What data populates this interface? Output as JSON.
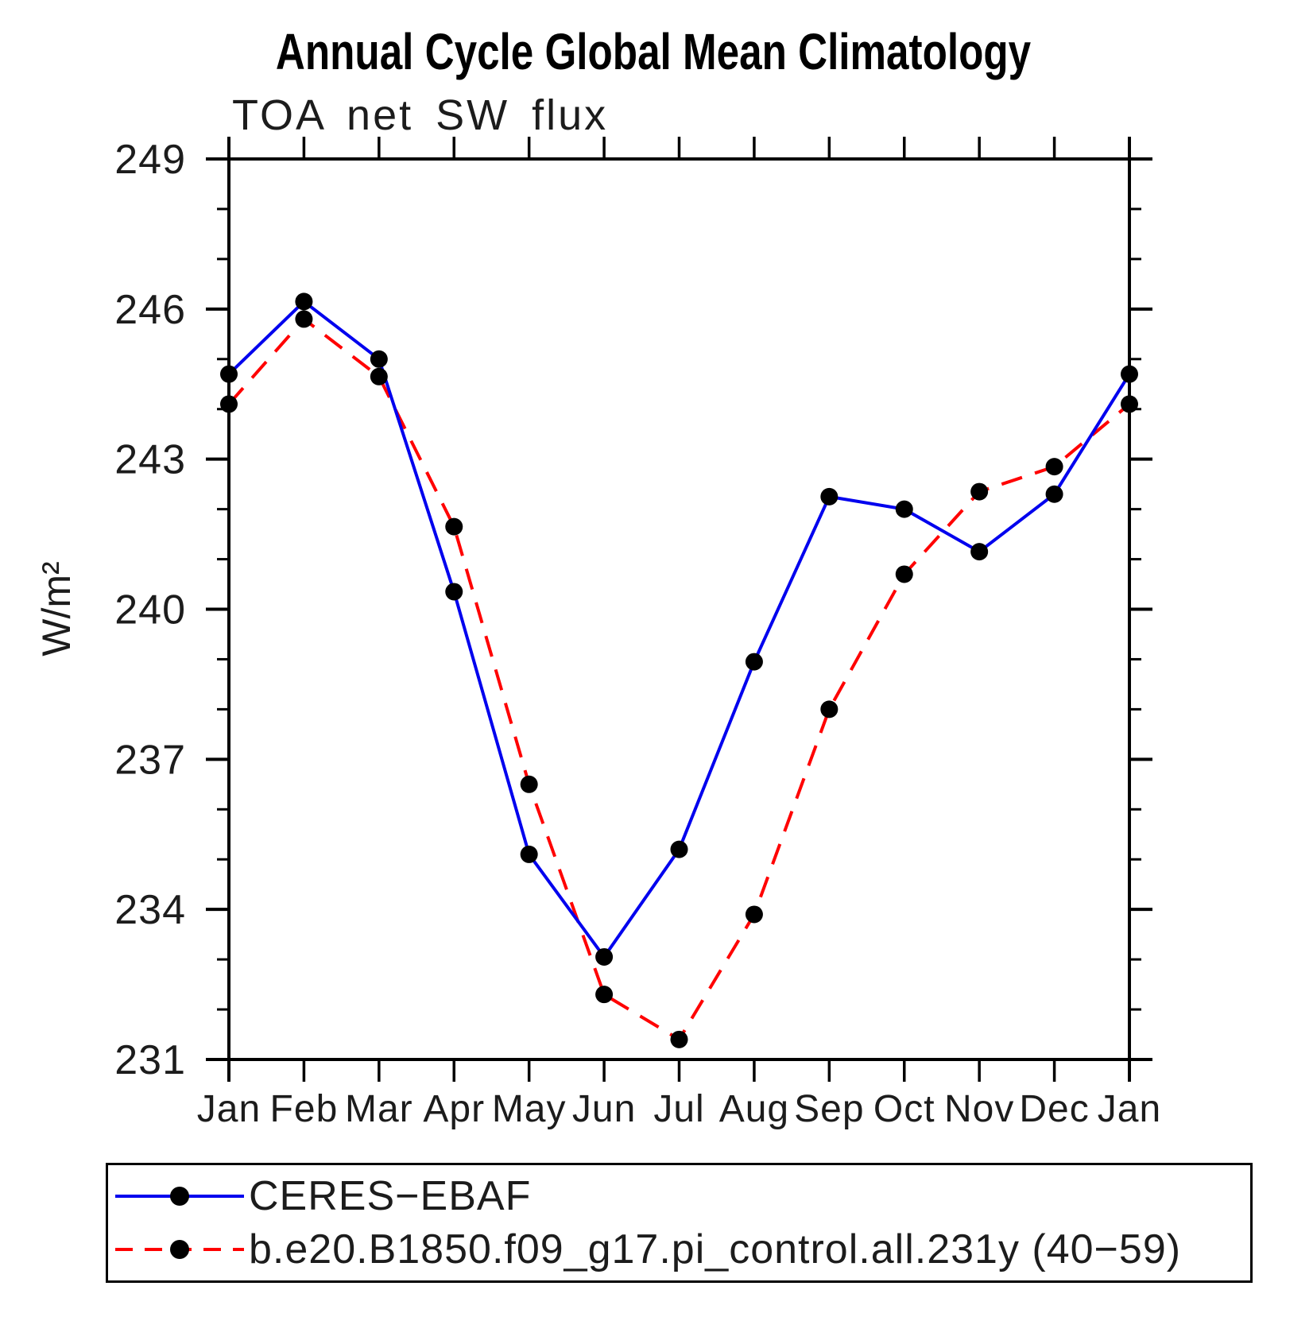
{
  "title": "Annual Cycle Global Mean Climatology",
  "subtitle": "TOA net SW flux",
  "legend": {
    "position": "bottom",
    "entries": [
      {
        "label": "CERES−EBAF",
        "color": "#0000ee",
        "line_style": "solid",
        "marker": "filled-circle",
        "marker_color": "#000000"
      },
      {
        "label": "b.e20.B1850.f09_g17.pi_control.all.231y (40−59)",
        "color": "#ff0000",
        "line_style": "dashed",
        "marker": "filled-circle",
        "marker_color": "#000000"
      }
    ]
  },
  "chart_data": {
    "type": "line",
    "title": "Annual Cycle Global Mean Climatology",
    "subtitle": "TOA net SW flux",
    "xlabel": "",
    "ylabel": "W/m²",
    "x_labels": [
      "Jan",
      "Feb",
      "Mar",
      "Apr",
      "May",
      "Jun",
      "Jul",
      "Aug",
      "Sep",
      "Oct",
      "Nov",
      "Dec",
      "Jan"
    ],
    "ylim": [
      231,
      249
    ],
    "yticks_major": [
      231,
      234,
      237,
      240,
      243,
      246,
      249
    ],
    "ytick_minor_step": 1,
    "grid": false,
    "frame": "box-with-outward-ticks",
    "series": [
      {
        "name": "CERES−EBAF",
        "color": "#0000ee",
        "line_style": "solid",
        "marker": "filled-circle",
        "marker_color": "#000000",
        "values": [
          244.7,
          246.15,
          245.0,
          240.35,
          235.1,
          233.05,
          235.2,
          238.95,
          242.25,
          242.0,
          241.15,
          242.3,
          244.7
        ]
      },
      {
        "name": "b.e20.B1850.f09_g17.pi_control.all.231y (40−59)",
        "color": "#ff0000",
        "line_style": "dashed",
        "marker": "filled-circle",
        "marker_color": "#000000",
        "values": [
          244.1,
          245.8,
          244.65,
          241.65,
          236.5,
          232.3,
          231.4,
          233.9,
          238.0,
          240.7,
          242.35,
          242.85,
          244.1
        ]
      }
    ]
  }
}
